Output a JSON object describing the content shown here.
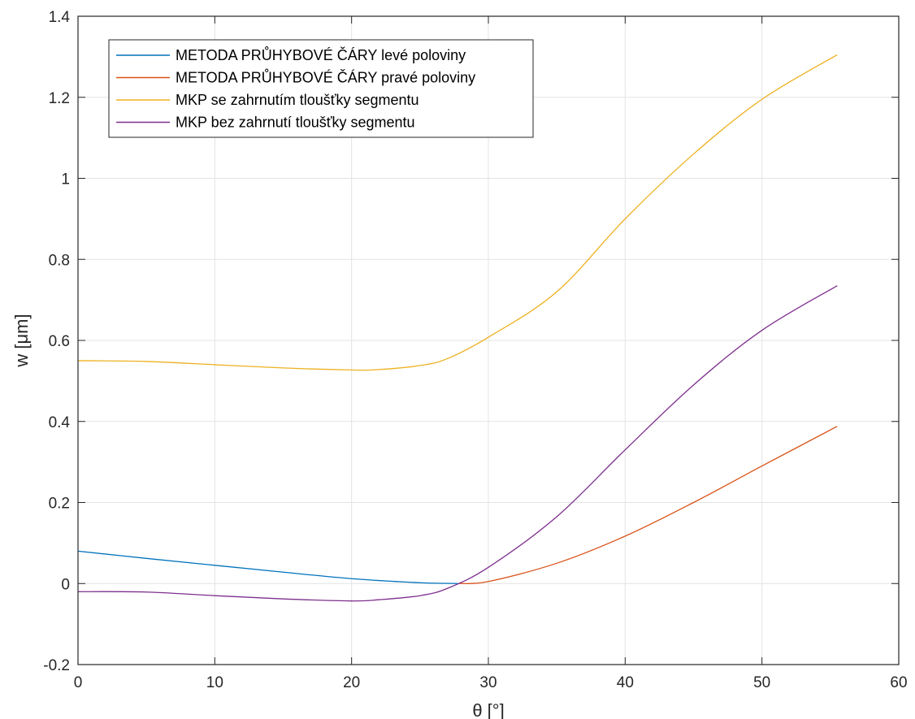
{
  "chart_data": {
    "type": "line",
    "title": "",
    "xlabel": "θ [°]",
    "ylabel": "w [μm]",
    "xlim": [
      0,
      60
    ],
    "ylim": [
      -0.2,
      1.4
    ],
    "xticks": [
      0,
      10,
      20,
      30,
      40,
      50,
      60
    ],
    "yticks": [
      -0.2,
      0,
      0.2,
      0.4,
      0.6,
      0.8,
      1,
      1.2,
      1.4
    ],
    "xtick_labels": [
      "0",
      "10",
      "20",
      "30",
      "40",
      "50",
      "60"
    ],
    "ytick_labels": [
      "-0.2",
      "0",
      "0.2",
      "0.4",
      "0.6",
      "0.8",
      "1",
      "1.2",
      "1.4"
    ],
    "grid": true,
    "legend_position": "top-left",
    "series": [
      {
        "name": "METODA PRŮHYBOVÉ ČÁRY levé poloviny",
        "color": "#0072BD",
        "x": [
          0,
          5,
          10,
          15,
          20,
          25,
          27.8
        ],
        "y": [
          0.08,
          0.062,
          0.045,
          0.028,
          0.012,
          0.002,
          0.0
        ]
      },
      {
        "name": "METODA PRŮHYBOVÉ ČÁRY pravé poloviny",
        "color": "#D95319",
        "x": [
          27.8,
          30,
          35,
          40,
          45,
          50,
          55.5
        ],
        "y": [
          0.0,
          0.005,
          0.05,
          0.117,
          0.2,
          0.29,
          0.388
        ]
      },
      {
        "name": "MKP se zahrnutím tloušťky segmentu",
        "color": "#EDB120",
        "x": [
          0,
          5,
          10,
          15,
          20,
          22,
          25,
          27,
          30,
          35,
          40,
          45,
          50,
          55.5
        ],
        "y": [
          0.55,
          0.548,
          0.54,
          0.532,
          0.527,
          0.528,
          0.538,
          0.555,
          0.608,
          0.72,
          0.9,
          1.06,
          1.195,
          1.305
        ]
      },
      {
        "name": "MKP bez zahrnutí tloušťky segmentu",
        "color": "#7E2F8E",
        "x": [
          0,
          5,
          10,
          15,
          20,
          22,
          25,
          27,
          30,
          35,
          40,
          45,
          50,
          55.5
        ],
        "y": [
          -0.02,
          -0.021,
          -0.03,
          -0.038,
          -0.043,
          -0.04,
          -0.03,
          -0.012,
          0.04,
          0.165,
          0.33,
          0.49,
          0.625,
          0.735
        ]
      }
    ]
  }
}
